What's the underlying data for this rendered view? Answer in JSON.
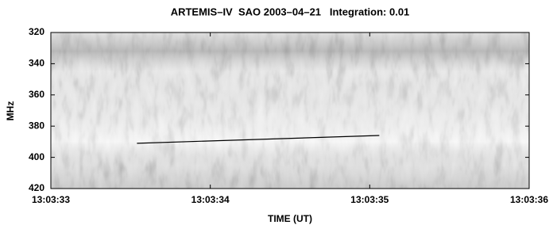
{
  "chart_data": {
    "type": "spectrogram",
    "title": "ARTEMIS–IV  SAO 2003–04–21   Integration: 0.01",
    "xlabel": "TIME (UT)",
    "ylabel": "MHz",
    "xlim": [
      47013,
      47016
    ],
    "xticks": [
      {
        "value": 47013,
        "label": "13:03:33"
      },
      {
        "value": 47014,
        "label": "13:03:34"
      },
      {
        "value": 47015,
        "label": "13:03:35"
      },
      {
        "value": 47016,
        "label": "13:03:36"
      }
    ],
    "ylim": [
      420,
      320
    ],
    "yticks": [
      320,
      340,
      360,
      380,
      400,
      420
    ],
    "line": {
      "x": [
        47013.54,
        47015.06
      ],
      "values": [
        391,
        386
      ],
      "color": "#000000"
    }
  }
}
